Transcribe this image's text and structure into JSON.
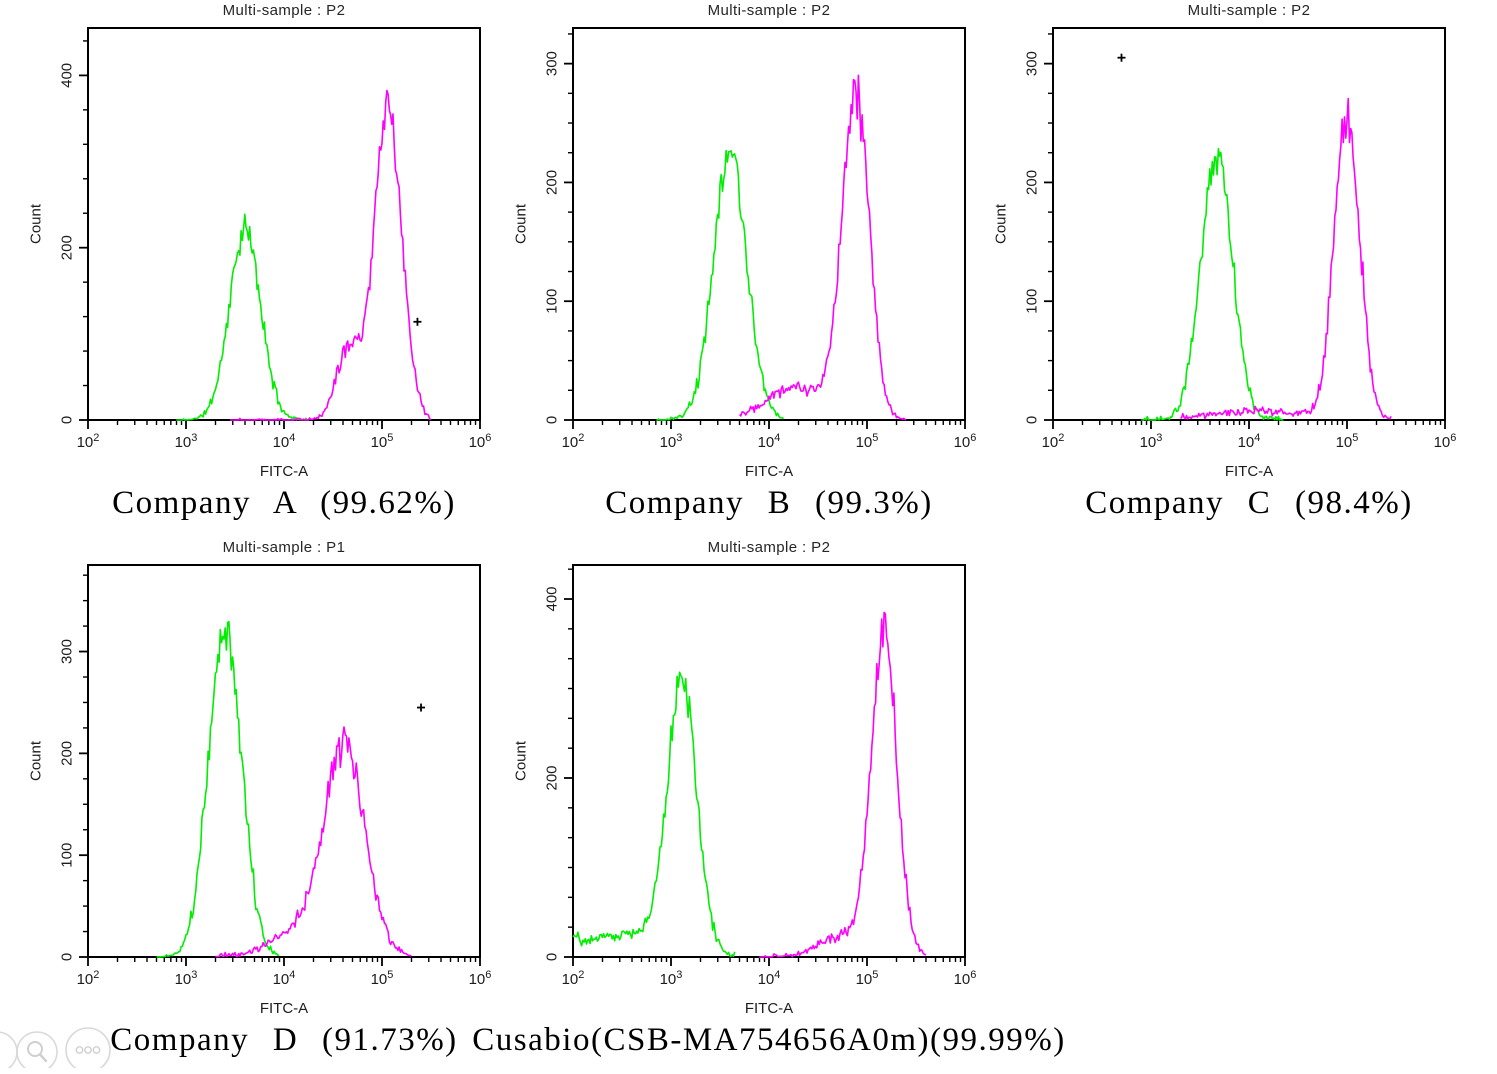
{
  "page": {
    "background": "#ffffff"
  },
  "colors": {
    "green": "#00ee00",
    "magenta": "#ff00ff",
    "axis": "#000000",
    "text": "#1c1c1c",
    "marker": "#000000",
    "icon_stroke": "#d9d9d9",
    "icon_glyph": "#cfcfcf"
  },
  "corner_tools": {
    "icons": [
      "partial-circle-icon",
      "zoom-magnifier-icon",
      "more-options-dots-icon"
    ]
  },
  "chart_data": [
    {
      "type": "histogram-overlay",
      "title": "Multi-sample : P2",
      "caption": "Company A (99.62%)",
      "percent_positive": "99.62%",
      "xlabel": "FITC-A",
      "ylabel": "Count",
      "x_scale": "log",
      "x_tick_exponents": [
        2,
        3,
        4,
        5,
        6
      ],
      "y_tick_labels": [
        0,
        200,
        400
      ],
      "y_subdivisions": 5,
      "y_max": 455,
      "legend": "off",
      "series": [
        {
          "name": "negative-control",
          "color": "green",
          "seed": 11,
          "range": [
            2.9,
            4.25
          ],
          "peak": {
            "x": 4000,
            "count": 220
          },
          "baseline_noise": 1,
          "components": [
            {
              "center": 4000,
              "sigma": 0.16,
              "peak": 220
            }
          ]
        },
        {
          "name": "stained-positive",
          "color": "magenta",
          "seed": 12,
          "range": [
            3.45,
            5.5
          ],
          "peak": {
            "x": 115000,
            "count": 365
          },
          "baseline_noise": 1,
          "components": [
            {
              "center": 115000,
              "sigma": 0.14,
              "peak": 365
            },
            {
              "center": 45000,
              "sigma": 0.12,
              "peak": 85
            }
          ]
        }
      ],
      "marker": {
        "x": 230000,
        "count": 114
      }
    },
    {
      "type": "histogram-overlay",
      "title": "Multi-sample : P2",
      "caption": "Company B (99.3%)",
      "percent_positive": "99.3%",
      "xlabel": "FITC-A",
      "ylabel": "Count",
      "x_scale": "log",
      "x_tick_exponents": [
        2,
        3,
        4,
        5,
        6
      ],
      "y_tick_labels": [
        0,
        100,
        200,
        300
      ],
      "y_subdivisions": 4,
      "y_max": 330,
      "legend": "off",
      "series": [
        {
          "name": "negative-control",
          "color": "green",
          "seed": 21,
          "range": [
            2.85,
            4.15
          ],
          "peak": {
            "x": 4000,
            "count": 225
          },
          "baseline_noise": 1,
          "components": [
            {
              "center": 4000,
              "sigma": 0.17,
              "peak": 225
            }
          ]
        },
        {
          "name": "stained-positive",
          "color": "magenta",
          "seed": 22,
          "range": [
            3.7,
            5.4
          ],
          "peak": {
            "x": 76000,
            "count": 275
          },
          "baseline_noise": 1.5,
          "components": [
            {
              "center": 76000,
              "sigma": 0.14,
              "peak": 275
            },
            {
              "center": 18000,
              "sigma": 0.3,
              "peak": 28
            }
          ]
        }
      ],
      "marker": null
    },
    {
      "type": "histogram-overlay",
      "title": "Multi-sample : P2",
      "caption": "Company C (98.4%)",
      "percent_positive": "98.4%",
      "xlabel": "FITC-A",
      "ylabel": "Count",
      "x_scale": "log",
      "x_tick_exponents": [
        2,
        3,
        4,
        5,
        6
      ],
      "y_tick_labels": [
        0,
        100,
        200,
        300
      ],
      "y_subdivisions": 4,
      "y_max": 330,
      "legend": "off",
      "series": [
        {
          "name": "negative-control",
          "color": "green",
          "seed": 31,
          "range": [
            2.9,
            4.35
          ],
          "peak": {
            "x": 4700,
            "count": 225
          },
          "baseline_noise": 1.5,
          "components": [
            {
              "center": 4700,
              "sigma": 0.16,
              "peak": 225
            }
          ]
        },
        {
          "name": "stained-positive",
          "color": "magenta",
          "seed": 32,
          "range": [
            3.3,
            5.45
          ],
          "peak": {
            "x": 100000,
            "count": 255
          },
          "baseline_noise": 2,
          "components": [
            {
              "center": 100000,
              "sigma": 0.13,
              "peak": 255
            },
            {
              "center": 12000,
              "sigma": 0.45,
              "peak": 8
            }
          ]
        }
      ],
      "marker": {
        "x": 500,
        "count": 305
      }
    },
    {
      "type": "histogram-overlay",
      "title": "Multi-sample : P1",
      "caption": "Company D (91.73%)",
      "percent_positive": "91.73%",
      "xlabel": "FITC-A",
      "ylabel": "Count",
      "x_scale": "log",
      "x_tick_exponents": [
        2,
        3,
        4,
        5,
        6
      ],
      "y_tick_labels": [
        0,
        100,
        200,
        300
      ],
      "y_subdivisions": 4,
      "y_max": 385,
      "legend": "off",
      "series": [
        {
          "name": "negative-control",
          "color": "green",
          "seed": 41,
          "range": [
            2.7,
            3.95
          ],
          "peak": {
            "x": 2500,
            "count": 320
          },
          "baseline_noise": 1,
          "components": [
            {
              "center": 2500,
              "sigma": 0.17,
              "peak": 320
            }
          ]
        },
        {
          "name": "stained-positive",
          "color": "magenta",
          "seed": 42,
          "range": [
            3.3,
            5.3
          ],
          "peak": {
            "x": 42000,
            "count": 200
          },
          "baseline_noise": 2,
          "components": [
            {
              "center": 42000,
              "sigma": 0.21,
              "peak": 200
            },
            {
              "center": 15000,
              "sigma": 0.3,
              "peak": 25
            }
          ]
        }
      ],
      "marker": {
        "x": 250000,
        "count": 245
      }
    },
    {
      "type": "histogram-overlay",
      "title": "Multi-sample : P2",
      "caption": "Cusabio(CSB-MA754656A0m)(99.99%)",
      "percent_positive": "99.99%",
      "xlabel": "FITC-A",
      "ylabel": "Count",
      "x_scale": "log",
      "x_tick_exponents": [
        2,
        3,
        4,
        5,
        6
      ],
      "y_tick_labels": [
        0,
        200,
        400
      ],
      "y_subdivisions": 6,
      "y_max": 438,
      "legend": "off",
      "series": [
        {
          "name": "negative-control",
          "color": "green",
          "seed": 51,
          "range": [
            2.0,
            3.65
          ],
          "peak": {
            "x": 1300,
            "count": 300
          },
          "baseline_noise": 3,
          "components": [
            {
              "center": 1300,
              "sigma": 0.15,
              "peak": 300
            },
            {
              "center": 350,
              "sigma": 0.45,
              "peak": 26
            },
            {
              "center": 100,
              "sigma": 0.04,
              "peak": 16
            }
          ]
        },
        {
          "name": "stained-positive",
          "color": "magenta",
          "seed": 52,
          "range": [
            3.9,
            5.6
          ],
          "peak": {
            "x": 150000,
            "count": 360
          },
          "baseline_noise": 2,
          "components": [
            {
              "center": 150000,
              "sigma": 0.13,
              "peak": 360
            },
            {
              "center": 60000,
              "sigma": 0.25,
              "peak": 25
            }
          ]
        }
      ],
      "marker": null
    }
  ]
}
